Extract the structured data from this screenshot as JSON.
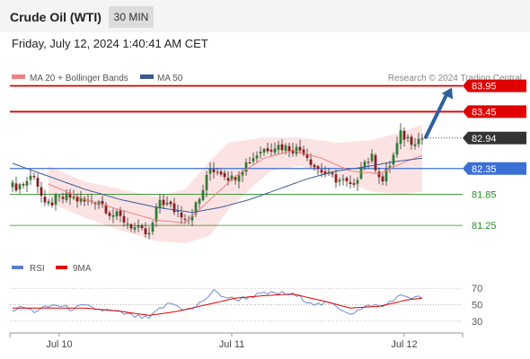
{
  "header": {
    "title": "Crude Oil (WTI)",
    "timeframe": "30 MIN",
    "datetime": "Friday, July 12, 2024 1:40:41 AM CET",
    "source": "Research © 2024 Trading Central"
  },
  "colors": {
    "candle_up": "#2e7d32",
    "candle_down": "#8b1a1a",
    "bollinger_fill": "#fcdede",
    "ma20": "#f08080",
    "ma50": "#3a5a98",
    "resistance": "#e00000",
    "support": "#3b6fd6",
    "target": "#2a8a2a",
    "current": "#333333",
    "arrow": "#2f5f9e",
    "rsi": "#5b7fd0",
    "rsi_ma": "#e00000"
  },
  "chart_data": [
    {
      "type": "candlestick",
      "legend": [
        {
          "name": "MA 20 + Bollinger Bands",
          "color": "#f08080"
        },
        {
          "name": "MA 50",
          "color": "#3a5a98"
        }
      ],
      "ylim": [
        80.8,
        84.1
      ],
      "x_ticks": [
        {
          "label": "Jul 10",
          "index": 13
        },
        {
          "label": "Jul 11",
          "index": 61
        },
        {
          "label": "Jul 12",
          "index": 109
        }
      ],
      "levels": [
        {
          "value": 83.95,
          "label": "83.95",
          "style": "resistance"
        },
        {
          "value": 83.45,
          "label": "83.45",
          "style": "resistance"
        },
        {
          "value": 82.94,
          "label": "82.94",
          "style": "current"
        },
        {
          "value": 82.35,
          "label": "82.35",
          "style": "support"
        },
        {
          "value": 81.85,
          "label": "81.85",
          "style": "target"
        },
        {
          "value": 81.25,
          "label": "81.25",
          "style": "target"
        }
      ],
      "anchors": [
        {
          "i": 0,
          "v": 82.0
        },
        {
          "i": 3,
          "v": 82.05
        },
        {
          "i": 6,
          "v": 82.25
        },
        {
          "i": 9,
          "v": 81.6
        },
        {
          "i": 12,
          "v": 81.75
        },
        {
          "i": 16,
          "v": 81.8
        },
        {
          "i": 20,
          "v": 81.7
        },
        {
          "i": 24,
          "v": 81.75
        },
        {
          "i": 27,
          "v": 81.5
        },
        {
          "i": 31,
          "v": 81.35
        },
        {
          "i": 35,
          "v": 81.15
        },
        {
          "i": 38,
          "v": 81.05
        },
        {
          "i": 41,
          "v": 81.75
        },
        {
          "i": 45,
          "v": 81.55
        },
        {
          "i": 49,
          "v": 81.4
        },
        {
          "i": 52,
          "v": 81.75
        },
        {
          "i": 55,
          "v": 82.35
        },
        {
          "i": 58,
          "v": 82.3
        },
        {
          "i": 61,
          "v": 82.15
        },
        {
          "i": 65,
          "v": 82.45
        },
        {
          "i": 69,
          "v": 82.7
        },
        {
          "i": 73,
          "v": 82.8
        },
        {
          "i": 77,
          "v": 82.75
        },
        {
          "i": 81,
          "v": 82.7
        },
        {
          "i": 84,
          "v": 82.4
        },
        {
          "i": 88,
          "v": 82.2
        },
        {
          "i": 92,
          "v": 82.1
        },
        {
          "i": 95,
          "v": 81.95
        },
        {
          "i": 97,
          "v": 82.45
        },
        {
          "i": 100,
          "v": 82.55
        },
        {
          "i": 103,
          "v": 82.1
        },
        {
          "i": 106,
          "v": 82.6
        },
        {
          "i": 108,
          "v": 83.0
        },
        {
          "i": 111,
          "v": 82.9
        },
        {
          "i": 114,
          "v": 82.94
        }
      ],
      "ma20_points": [
        {
          "i": 10,
          "v": 82.05
        },
        {
          "i": 20,
          "v": 81.75
        },
        {
          "i": 30,
          "v": 81.55
        },
        {
          "i": 40,
          "v": 81.35
        },
        {
          "i": 48,
          "v": 81.3
        },
        {
          "i": 55,
          "v": 81.75
        },
        {
          "i": 62,
          "v": 82.2
        },
        {
          "i": 70,
          "v": 82.55
        },
        {
          "i": 78,
          "v": 82.7
        },
        {
          "i": 86,
          "v": 82.55
        },
        {
          "i": 94,
          "v": 82.3
        },
        {
          "i": 102,
          "v": 82.25
        },
        {
          "i": 110,
          "v": 82.5
        },
        {
          "i": 114,
          "v": 82.6
        }
      ],
      "ma50_points": [
        {
          "i": 0,
          "v": 82.45
        },
        {
          "i": 10,
          "v": 82.2
        },
        {
          "i": 20,
          "v": 81.95
        },
        {
          "i": 30,
          "v": 81.75
        },
        {
          "i": 40,
          "v": 81.6
        },
        {
          "i": 50,
          "v": 81.5
        },
        {
          "i": 58,
          "v": 81.6
        },
        {
          "i": 66,
          "v": 81.75
        },
        {
          "i": 74,
          "v": 81.95
        },
        {
          "i": 82,
          "v": 82.15
        },
        {
          "i": 90,
          "v": 82.3
        },
        {
          "i": 98,
          "v": 82.38
        },
        {
          "i": 106,
          "v": 82.48
        },
        {
          "i": 114,
          "v": 82.55
        }
      ],
      "bb_upper_points": [
        {
          "i": 10,
          "v": 82.4
        },
        {
          "i": 20,
          "v": 82.1
        },
        {
          "i": 30,
          "v": 81.95
        },
        {
          "i": 40,
          "v": 81.8
        },
        {
          "i": 48,
          "v": 81.95
        },
        {
          "i": 55,
          "v": 82.5
        },
        {
          "i": 60,
          "v": 82.85
        },
        {
          "i": 70,
          "v": 82.95
        },
        {
          "i": 80,
          "v": 82.95
        },
        {
          "i": 90,
          "v": 82.85
        },
        {
          "i": 100,
          "v": 82.9
        },
        {
          "i": 108,
          "v": 83.05
        },
        {
          "i": 114,
          "v": 83.2
        }
      ],
      "bb_lower_points": [
        {
          "i": 10,
          "v": 81.7
        },
        {
          "i": 20,
          "v": 81.4
        },
        {
          "i": 30,
          "v": 81.15
        },
        {
          "i": 40,
          "v": 80.95
        },
        {
          "i": 48,
          "v": 80.9
        },
        {
          "i": 55,
          "v": 81.05
        },
        {
          "i": 60,
          "v": 81.55
        },
        {
          "i": 66,
          "v": 81.95
        },
        {
          "i": 72,
          "v": 82.3
        },
        {
          "i": 80,
          "v": 82.4
        },
        {
          "i": 90,
          "v": 82.15
        },
        {
          "i": 100,
          "v": 81.9
        },
        {
          "i": 108,
          "v": 81.85
        },
        {
          "i": 114,
          "v": 81.9
        }
      ],
      "forecast_arrow": {
        "from": {
          "i": 114,
          "v": 82.94
        },
        "to": {
          "i": 123,
          "v": 83.95
        }
      }
    },
    {
      "type": "line",
      "legend": [
        {
          "name": "RSI",
          "color": "#5b7fd0"
        },
        {
          "name": "9MA",
          "color": "#e00000"
        }
      ],
      "ylim": [
        20,
        80
      ],
      "y_ticks": [
        70,
        50,
        30
      ],
      "rsi_points": [
        {
          "i": 0,
          "v": 44
        },
        {
          "i": 3,
          "v": 47
        },
        {
          "i": 6,
          "v": 42
        },
        {
          "i": 9,
          "v": 46
        },
        {
          "i": 12,
          "v": 50
        },
        {
          "i": 16,
          "v": 45
        },
        {
          "i": 20,
          "v": 48
        },
        {
          "i": 24,
          "v": 44
        },
        {
          "i": 28,
          "v": 42
        },
        {
          "i": 32,
          "v": 38
        },
        {
          "i": 35,
          "v": 35
        },
        {
          "i": 38,
          "v": 33
        },
        {
          "i": 41,
          "v": 45
        },
        {
          "i": 44,
          "v": 52
        },
        {
          "i": 47,
          "v": 46
        },
        {
          "i": 50,
          "v": 44
        },
        {
          "i": 53,
          "v": 55
        },
        {
          "i": 56,
          "v": 66
        },
        {
          "i": 59,
          "v": 60
        },
        {
          "i": 62,
          "v": 56
        },
        {
          "i": 66,
          "v": 60
        },
        {
          "i": 70,
          "v": 63
        },
        {
          "i": 74,
          "v": 64
        },
        {
          "i": 78,
          "v": 62
        },
        {
          "i": 82,
          "v": 55
        },
        {
          "i": 85,
          "v": 50
        },
        {
          "i": 88,
          "v": 52
        },
        {
          "i": 91,
          "v": 46
        },
        {
          "i": 94,
          "v": 40
        },
        {
          "i": 97,
          "v": 44
        },
        {
          "i": 100,
          "v": 50
        },
        {
          "i": 103,
          "v": 47
        },
        {
          "i": 106,
          "v": 57
        },
        {
          "i": 109,
          "v": 61
        },
        {
          "i": 112,
          "v": 58
        },
        {
          "i": 114,
          "v": 59
        }
      ],
      "rsi_ma_points": [
        {
          "i": 0,
          "v": 46
        },
        {
          "i": 10,
          "v": 46
        },
        {
          "i": 20,
          "v": 46
        },
        {
          "i": 30,
          "v": 42
        },
        {
          "i": 38,
          "v": 37
        },
        {
          "i": 46,
          "v": 42
        },
        {
          "i": 54,
          "v": 50
        },
        {
          "i": 62,
          "v": 58
        },
        {
          "i": 70,
          "v": 61
        },
        {
          "i": 78,
          "v": 63
        },
        {
          "i": 86,
          "v": 55
        },
        {
          "i": 94,
          "v": 46
        },
        {
          "i": 102,
          "v": 48
        },
        {
          "i": 110,
          "v": 56
        },
        {
          "i": 114,
          "v": 58
        }
      ]
    }
  ]
}
